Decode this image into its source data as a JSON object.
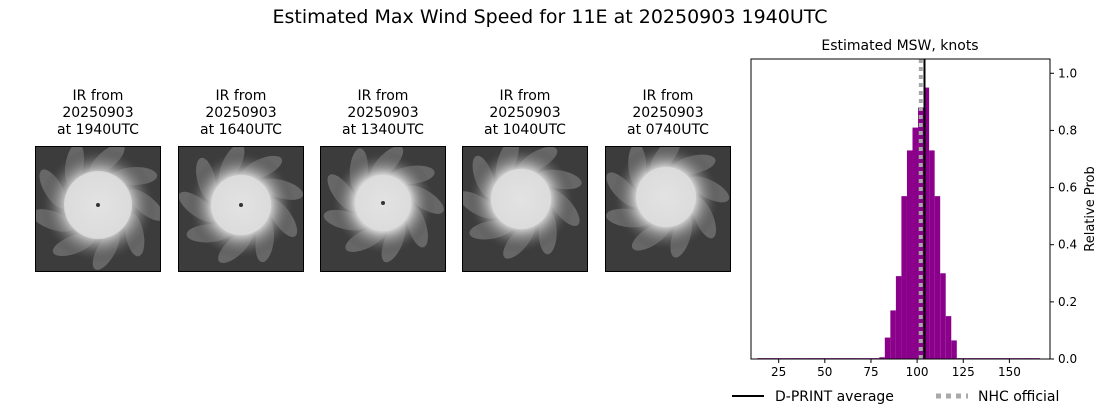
{
  "title": "Estimated Max Wind Speed for 11E at 20250903 1940UTC",
  "panels": [
    {
      "l1": "IR from",
      "l2": "20250903",
      "l3": "at 1940UTC"
    },
    {
      "l1": "IR from",
      "l2": "20250903",
      "l3": "at 1640UTC"
    },
    {
      "l1": "IR from",
      "l2": "20250903",
      "l3": "at 1340UTC"
    },
    {
      "l1": "IR from",
      "l2": "20250903",
      "l3": "at 1040UTC"
    },
    {
      "l1": "IR from",
      "l2": "20250903",
      "l3": "at 0740UTC"
    }
  ],
  "chart_data": {
    "type": "bar",
    "title": "Estimated MSW, knots",
    "xlabel": "",
    "ylabel": "Relative Prob",
    "xlim": [
      10,
      172
    ],
    "ylim": [
      0,
      1.05
    ],
    "xticks": [
      25,
      50,
      75,
      100,
      125,
      150
    ],
    "yticks": [
      0.0,
      0.2,
      0.4,
      0.6,
      0.8,
      1.0
    ],
    "bar_color": "#8b008b",
    "bin_width": 3,
    "bins": [
      {
        "x": 15,
        "y": 0.003
      },
      {
        "x": 18,
        "y": 0.003
      },
      {
        "x": 21,
        "y": 0.003
      },
      {
        "x": 24,
        "y": 0.003
      },
      {
        "x": 27,
        "y": 0.003
      },
      {
        "x": 30,
        "y": 0.003
      },
      {
        "x": 33,
        "y": 0.003
      },
      {
        "x": 36,
        "y": 0.003
      },
      {
        "x": 39,
        "y": 0.003
      },
      {
        "x": 42,
        "y": 0.003
      },
      {
        "x": 45,
        "y": 0.003
      },
      {
        "x": 48,
        "y": 0.003
      },
      {
        "x": 51,
        "y": 0.003
      },
      {
        "x": 54,
        "y": 0.003
      },
      {
        "x": 57,
        "y": 0.003
      },
      {
        "x": 60,
        "y": 0.003
      },
      {
        "x": 63,
        "y": 0.003
      },
      {
        "x": 66,
        "y": 0.003
      },
      {
        "x": 69,
        "y": 0.003
      },
      {
        "x": 72,
        "y": 0.003
      },
      {
        "x": 75,
        "y": 0.003
      },
      {
        "x": 78,
        "y": 0.003
      },
      {
        "x": 81,
        "y": 0.006
      },
      {
        "x": 84,
        "y": 0.075
      },
      {
        "x": 87,
        "y": 0.17
      },
      {
        "x": 90,
        "y": 0.29
      },
      {
        "x": 93,
        "y": 0.57
      },
      {
        "x": 96,
        "y": 0.73
      },
      {
        "x": 99,
        "y": 0.81
      },
      {
        "x": 102,
        "y": 0.88
      },
      {
        "x": 105,
        "y": 0.95
      },
      {
        "x": 108,
        "y": 0.73
      },
      {
        "x": 111,
        "y": 0.57
      },
      {
        "x": 114,
        "y": 0.3
      },
      {
        "x": 117,
        "y": 0.15
      },
      {
        "x": 120,
        "y": 0.065
      },
      {
        "x": 123,
        "y": 0.003
      },
      {
        "x": 126,
        "y": 0.003
      },
      {
        "x": 129,
        "y": 0.003
      },
      {
        "x": 132,
        "y": 0.003
      },
      {
        "x": 135,
        "y": 0.003
      },
      {
        "x": 138,
        "y": 0.003
      },
      {
        "x": 141,
        "y": 0.003
      },
      {
        "x": 144,
        "y": 0.003
      },
      {
        "x": 147,
        "y": 0.003
      },
      {
        "x": 150,
        "y": 0.003
      },
      {
        "x": 153,
        "y": 0.003
      },
      {
        "x": 156,
        "y": 0.003
      },
      {
        "x": 159,
        "y": 0.003
      },
      {
        "x": 162,
        "y": 0.003
      },
      {
        "x": 165,
        "y": 0.003
      }
    ],
    "lines": [
      {
        "name": "D-PRINT average",
        "x": 104,
        "color": "#000000",
        "style": "solid"
      },
      {
        "name": "NHC official",
        "x": 102,
        "color": "#a9a9a9",
        "style": "dotted"
      }
    ],
    "legend": "bottom"
  }
}
